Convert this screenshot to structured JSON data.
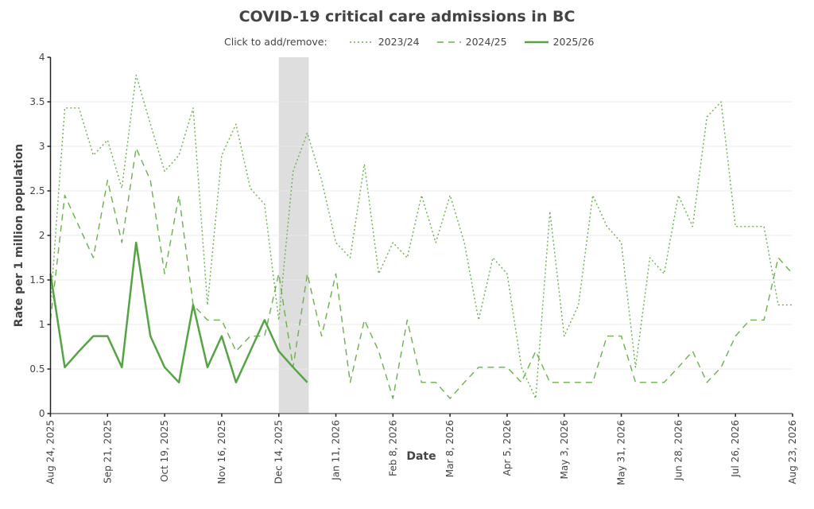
{
  "chart_data": {
    "type": "line",
    "title": "COVID-19 critical care admissions in BC",
    "xlabel": "Date",
    "ylabel": "Rate per 1 million population",
    "ylim": [
      0,
      4
    ],
    "yticks": [
      "0",
      "0.5",
      "1",
      "1.5",
      "2",
      "2.5",
      "3",
      "3.5",
      "4"
    ],
    "xticks": [
      "Aug 24, 2025",
      "Sep 21, 2025",
      "Oct 19, 2025",
      "Nov 16, 2025",
      "Dec 14, 2025",
      "Jan 11, 2026",
      "Feb 8, 2026",
      "Mar 8, 2026",
      "Apr 5, 2026",
      "May 3, 2026",
      "May 31, 2026",
      "Jun 28, 2026",
      "Jul 26, 2026",
      "Aug 23, 2026"
    ],
    "x_unit": "weeks from Aug 24, 2025",
    "xlim": [
      0,
      52
    ],
    "highlight_band": {
      "from_week": 16,
      "to_week": 18.1
    },
    "grid": true,
    "legend": {
      "label": "Click to add/remove:",
      "placement": "top-center"
    },
    "series": [
      {
        "name": "2023/24",
        "style": "dotted",
        "color": "#6ab04c",
        "values": [
          1.22,
          3.43,
          3.43,
          2.9,
          3.07,
          2.53,
          3.8,
          3.25,
          2.72,
          2.9,
          3.43,
          1.22,
          2.9,
          3.25,
          2.53,
          2.35,
          1.05,
          2.72,
          3.15,
          2.62,
          1.92,
          1.75,
          2.8,
          1.57,
          1.92,
          1.75,
          2.45,
          1.92,
          2.45,
          1.92,
          1.05,
          1.75,
          1.57,
          0.52,
          0.17,
          2.27,
          0.87,
          1.22,
          2.45,
          2.1,
          1.92,
          0.52,
          1.75,
          1.57,
          2.45,
          2.1,
          3.33,
          3.5,
          2.1,
          2.1,
          2.1,
          1.22,
          1.22
        ]
      },
      {
        "name": "2024/25",
        "style": "dashed",
        "color": "#6ab04c",
        "values": [
          1.05,
          2.45,
          2.1,
          1.75,
          2.62,
          1.92,
          2.98,
          2.62,
          1.57,
          2.45,
          1.22,
          1.05,
          1.05,
          0.7,
          0.87,
          0.87,
          1.57,
          0.52,
          1.57,
          0.87,
          1.57,
          0.35,
          1.05,
          0.7,
          0.17,
          1.05,
          0.35,
          0.35,
          0.17,
          0.35,
          0.52,
          0.52,
          0.52,
          0.35,
          0.7,
          0.35,
          0.35,
          0.35,
          0.35,
          0.87,
          0.87,
          0.35,
          0.35,
          0.35,
          0.52,
          0.7,
          0.35,
          0.52,
          0.87,
          1.05,
          1.05,
          1.75,
          1.57
        ]
      },
      {
        "name": "2025/26",
        "style": "solid",
        "color": "#55a443",
        "values": [
          1.57,
          0.52,
          0.7,
          0.87,
          0.87,
          0.52,
          1.92,
          0.87,
          0.52,
          0.35,
          1.22,
          0.52,
          0.87,
          0.35,
          0.7,
          1.05,
          0.7,
          0.52,
          0.35
        ]
      }
    ]
  }
}
